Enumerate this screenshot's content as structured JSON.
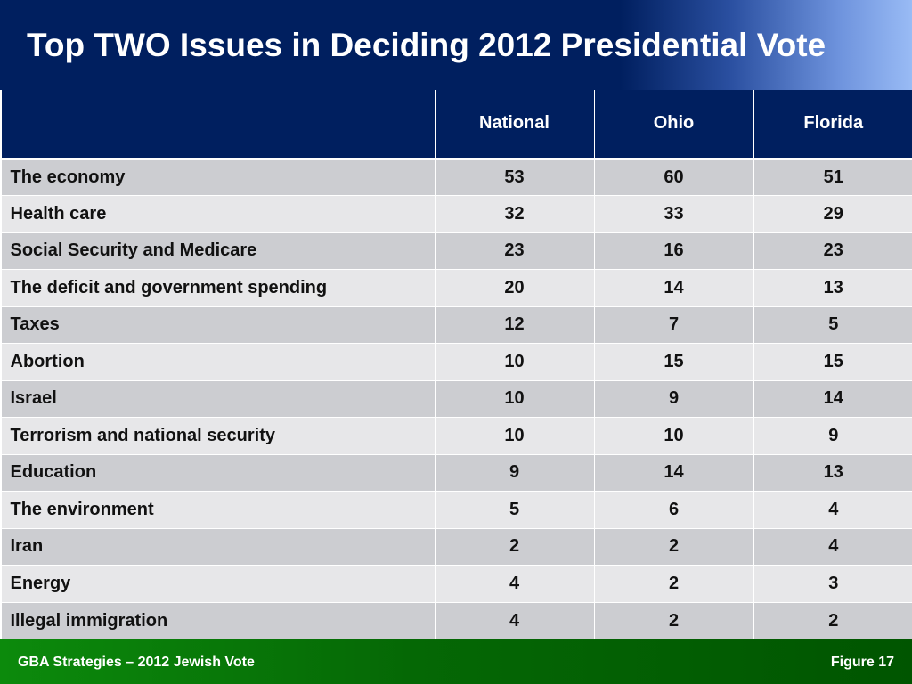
{
  "title": "Top TWO Issues in Deciding 2012 Presidential Vote",
  "chart_data": {
    "type": "table",
    "title": "Top TWO Issues in Deciding 2012 Presidential Vote",
    "columns": [
      "",
      "National",
      "Ohio",
      "Florida"
    ],
    "rows": [
      {
        "issue": "The economy",
        "values": [
          53,
          60,
          51
        ]
      },
      {
        "issue": "Health care",
        "values": [
          32,
          33,
          29
        ]
      },
      {
        "issue": "Social Security and Medicare",
        "values": [
          23,
          16,
          23
        ]
      },
      {
        "issue": "The deficit and government spending",
        "values": [
          20,
          14,
          13
        ]
      },
      {
        "issue": "Taxes",
        "values": [
          12,
          7,
          5
        ]
      },
      {
        "issue": "Abortion",
        "values": [
          10,
          15,
          15
        ]
      },
      {
        "issue": "Israel",
        "values": [
          10,
          9,
          14
        ]
      },
      {
        "issue": "Terrorism and national security",
        "values": [
          10,
          10,
          9
        ]
      },
      {
        "issue": "Education",
        "values": [
          9,
          14,
          13
        ]
      },
      {
        "issue": "The environment",
        "values": [
          5,
          6,
          4
        ]
      },
      {
        "issue": "Iran",
        "values": [
          2,
          2,
          4
        ]
      },
      {
        "issue": "Energy",
        "values": [
          4,
          2,
          3
        ]
      },
      {
        "issue": "Illegal immigration",
        "values": [
          4,
          2,
          2
        ]
      }
    ]
  },
  "footer": {
    "source": "GBA Strategies – 2012 Jewish Vote",
    "figure_label": "Figure  17"
  },
  "colors": {
    "header_navy": "#001f5f",
    "row_dark": "#cccdd1",
    "row_light": "#e7e7e9",
    "footer_green": "#056805"
  }
}
